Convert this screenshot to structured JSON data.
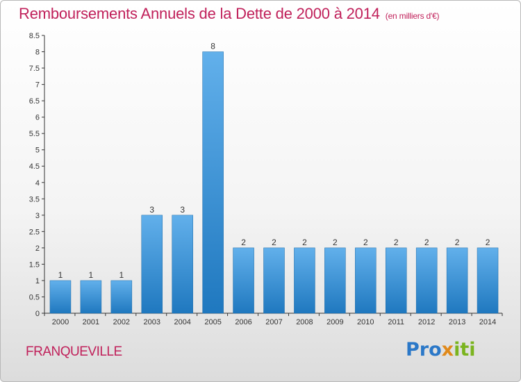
{
  "title": "Remboursements Annuels de la Dette de 2000 à 2014",
  "subtitle": "(en milliers d'€)",
  "commune": "FRANQUEVILLE",
  "logo": {
    "part1": "Pro",
    "part2": "x",
    "part3": "iti"
  },
  "colors": {
    "title": "#c0205a",
    "bar_light": "#62b0eb",
    "bar_dark": "#1f78bf",
    "axis": "#333333"
  },
  "chart_data": {
    "type": "bar",
    "categories": [
      "2000",
      "2001",
      "2002",
      "2003",
      "2004",
      "2005",
      "2006",
      "2007",
      "2008",
      "2009",
      "2010",
      "2011",
      "2012",
      "2013",
      "2014"
    ],
    "values": [
      1,
      1,
      1,
      3,
      3,
      8,
      2,
      2,
      2,
      2,
      2,
      2,
      2,
      2,
      2
    ],
    "value_labels": [
      "1",
      "1",
      "1",
      "3",
      "3",
      "8",
      "2",
      "2",
      "2",
      "2",
      "2",
      "2",
      "2",
      "2",
      "2"
    ],
    "yticks": [
      "0",
      "0.5",
      "1",
      "1.5",
      "2",
      "2.5",
      "3",
      "3.5",
      "4",
      "4.5",
      "5",
      "5.5",
      "6",
      "6.5",
      "7",
      "7.5",
      "8",
      "8.5"
    ],
    "ylim": [
      0,
      8.5
    ],
    "grid": false,
    "legend": "none"
  }
}
